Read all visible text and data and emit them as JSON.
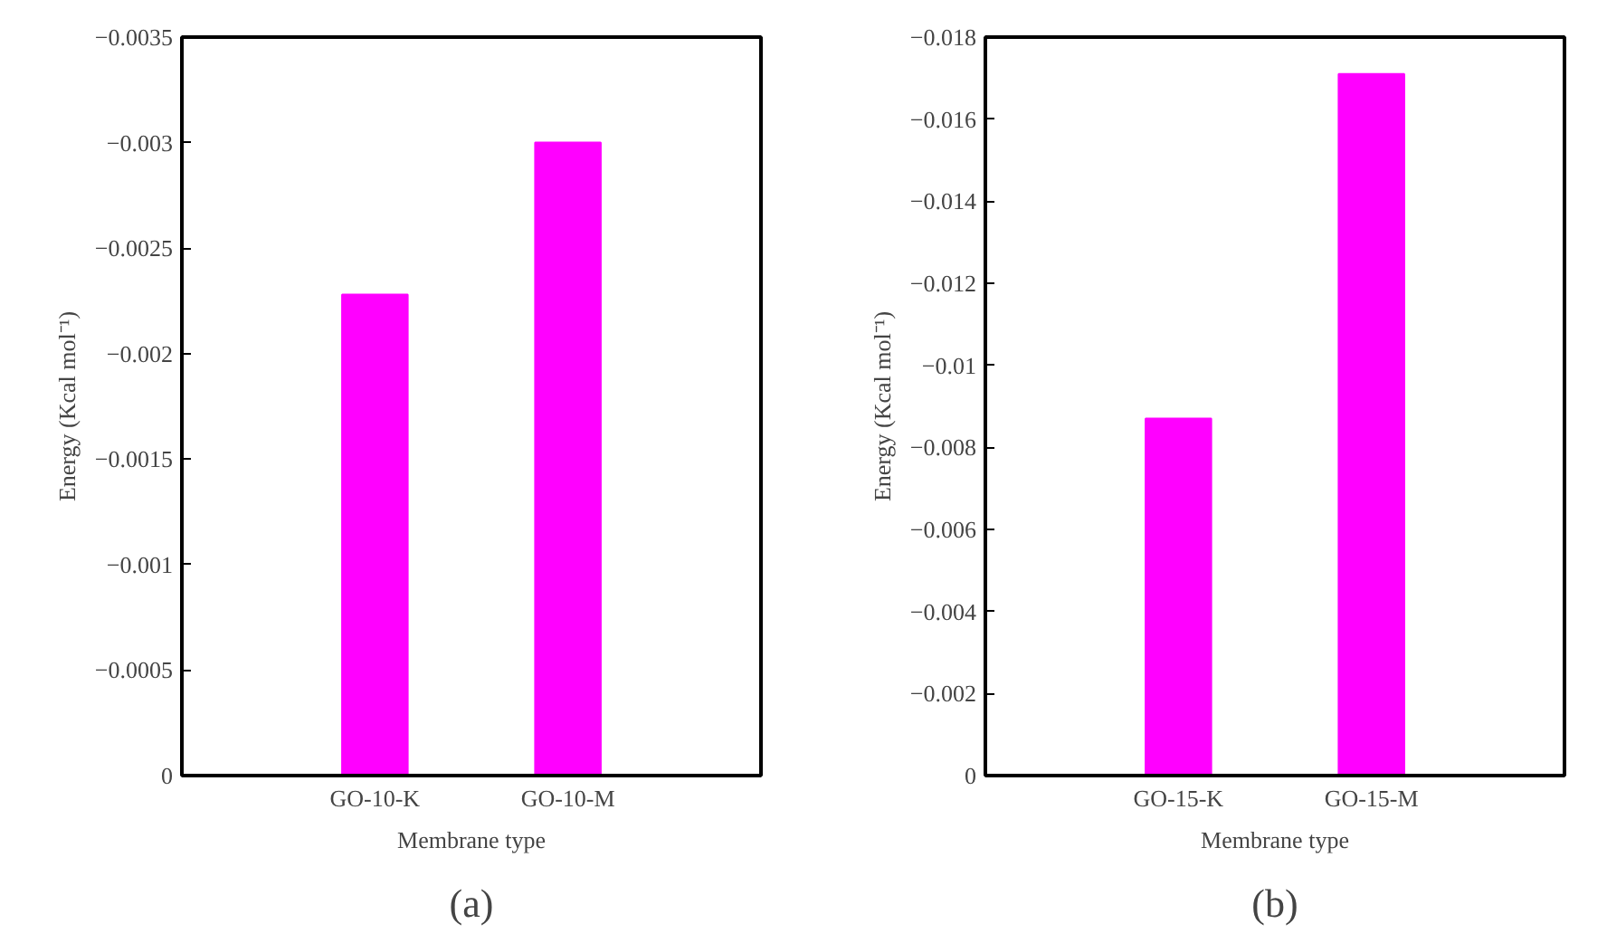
{
  "chart_data": [
    {
      "type": "bar",
      "xlabel": "Membrane type",
      "ylabel": "Energy (Kcal mol⁻¹)",
      "categories": [
        "GO-10-K",
        "GO-10-M"
      ],
      "values": [
        -0.00228,
        -0.003
      ],
      "color": "#ff00ff",
      "ylim": [
        0,
        -0.0035
      ],
      "yticks": [
        0,
        {
          "value": -0.0005,
          "label": "−0.0005"
        },
        {
          "value": -0.001,
          "label": "−0.001"
        },
        {
          "value": -0.0015,
          "label": "−0.0015"
        },
        {
          "value": -0.002,
          "label": "−0.002"
        },
        {
          "value": -0.0025,
          "label": "−0.0025"
        },
        {
          "value": -0.003,
          "label": "−0.003"
        },
        {
          "value": -0.0035,
          "label": "−0.0035"
        }
      ],
      "grid": false,
      "annotations": [
        "(a)"
      ]
    },
    {
      "type": "bar",
      "xlabel": "Membrane type",
      "ylabel": "Energy (Kcal mol⁻¹)",
      "categories": [
        "GO-15-K",
        "GO-15-M"
      ],
      "values": [
        -0.0087,
        -0.0171
      ],
      "color": "#ff00ff",
      "ylim": [
        0,
        -0.018
      ],
      "yticks": [
        0,
        {
          "value": -0.002,
          "label": "−0.002"
        },
        {
          "value": -0.004,
          "label": "−0.004"
        },
        {
          "value": -0.006,
          "label": "−0.006"
        },
        {
          "value": -0.008,
          "label": "−0.008"
        },
        {
          "value": -0.01,
          "label": "−0.01"
        },
        {
          "value": -0.012,
          "label": "−0.012"
        },
        {
          "value": -0.014,
          "label": "−0.014"
        },
        {
          "value": -0.016,
          "label": "−0.016"
        },
        {
          "value": -0.018,
          "label": "−0.018"
        }
      ],
      "grid": false,
      "annotations": [
        "(b)"
      ]
    }
  ]
}
